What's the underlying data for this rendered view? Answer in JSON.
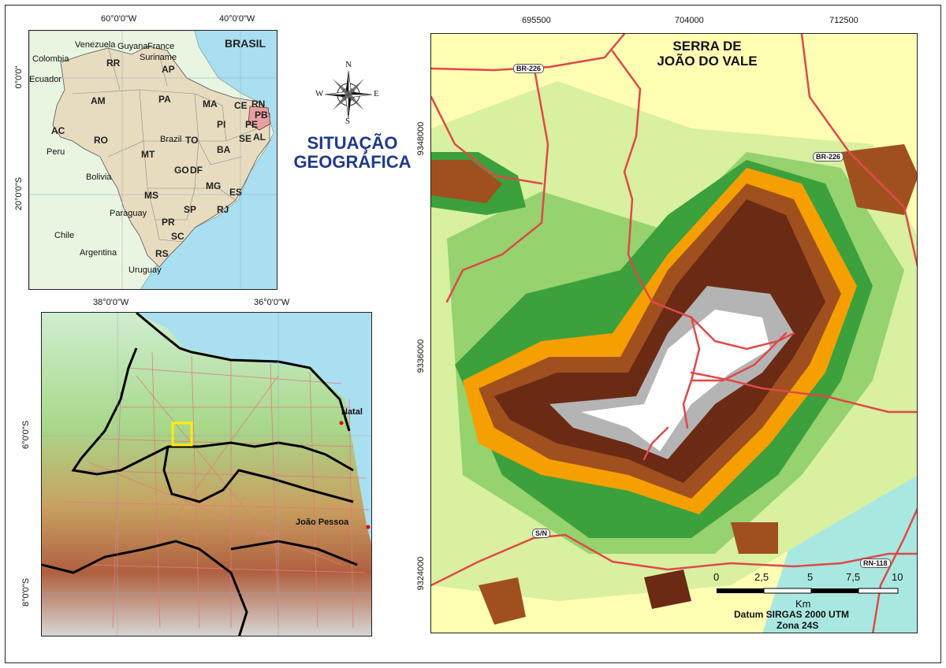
{
  "brazil_inset": {
    "title": "BRASIL",
    "top_ticks": [
      "60°0'0\"W",
      "40°0'0\"W"
    ],
    "left_ticks": [
      "0°0'0\"",
      "20°0'0\"S"
    ],
    "countries": [
      "Venezuela",
      "Guyana",
      "France",
      "Suriname",
      "Colombia",
      "Ecuador",
      "Peru",
      "Bolivia",
      "Paraguay",
      "Chile",
      "Argentina",
      "Uruguay",
      "Brazil"
    ],
    "states": [
      "RR",
      "AP",
      "AM",
      "PA",
      "MA",
      "CE",
      "RN",
      "PB",
      "PE",
      "AL",
      "SE",
      "PI",
      "AC",
      "RO",
      "TO",
      "BA",
      "MT",
      "GO",
      "DF",
      "MG",
      "ES",
      "MS",
      "SP",
      "RJ",
      "PR",
      "SC",
      "RS"
    ]
  },
  "region_inset": {
    "top_ticks": [
      "38°0'0\"W",
      "36°0'0\"W"
    ],
    "left_ticks": [
      "6°0'0\"S",
      "8°0'0\"S"
    ],
    "cities": [
      "Natal",
      "João Pessoa"
    ]
  },
  "center": {
    "title_line1": "SITUAÇÃO",
    "title_line2": "GEOGRÁFICA",
    "compass": {
      "n": "N",
      "s": "S",
      "e": "E",
      "w": "W"
    }
  },
  "main_map": {
    "title_line1": "SERRA DE",
    "title_line2": "JOÃO DO VALE",
    "top_ticks": [
      "695500",
      "704000",
      "712500"
    ],
    "left_ticks": [
      "9348000",
      "9336000",
      "9324000"
    ],
    "roads": [
      "BR-226",
      "BR-226",
      "S/N",
      "RN-118"
    ],
    "scale_ticks": [
      "0",
      "2,5",
      "5",
      "7,5",
      "10"
    ],
    "scale_unit": "Km",
    "datum_line1": "Datum SIRGAS 2000 UTM",
    "datum_line2": "Zona 24S"
  },
  "colors": {
    "ocean": "#a9dff0",
    "land_other": "#e8f5e1",
    "brazil": "#e8dcc0",
    "highlight": "#e7a0a0",
    "study_box": "#ffee00",
    "roads": "#e04848",
    "title_blue": "#1f3a8a",
    "elev": [
      "#a9e8e0",
      "#ffffb4",
      "#d8f0a0",
      "#96d26e",
      "#3ca03c",
      "#f5a000",
      "#a0501e",
      "#6a2a14",
      "#b4b4b4",
      "#ffffff"
    ]
  }
}
